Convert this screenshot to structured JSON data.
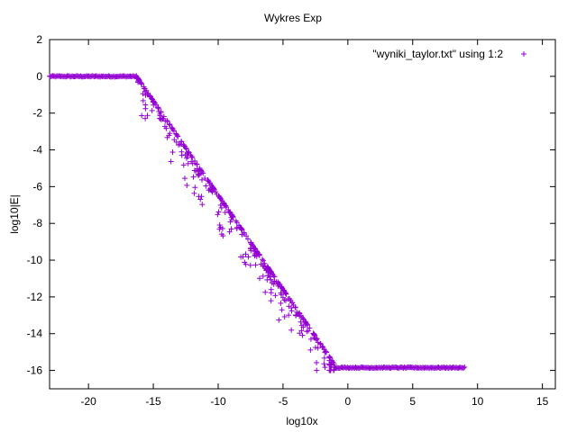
{
  "chart_data": {
    "type": "scatter",
    "title": "Wykres Exp",
    "xlabel": "log10x",
    "ylabel": "log10|E|",
    "xlim": [
      -23,
      16
    ],
    "ylim": [
      -17,
      2
    ],
    "xticks": [
      -20,
      -15,
      -10,
      -5,
      0,
      5,
      10,
      15
    ],
    "yticks": [
      2,
      0,
      -2,
      -4,
      -6,
      -8,
      -10,
      -12,
      -14,
      -16
    ],
    "grid": false,
    "legend": {
      "position": "top-right"
    },
    "series": [
      {
        "name": "\"wyniki_taylor.txt\" using 1:2",
        "color": "#9400d3",
        "marker": "plus",
        "segments": [
          {
            "kind": "flat",
            "x_start": -23,
            "x_end": -16.3,
            "y": 0
          },
          {
            "kind": "slope",
            "x_start": -16.3,
            "x_end": -0.8,
            "y_start": 0,
            "y_end": -15.9,
            "scatter_down_max": 2.0
          },
          {
            "kind": "flat",
            "x_start": -1.0,
            "x_end": 9.0,
            "y": -15.85
          }
        ]
      }
    ]
  }
}
